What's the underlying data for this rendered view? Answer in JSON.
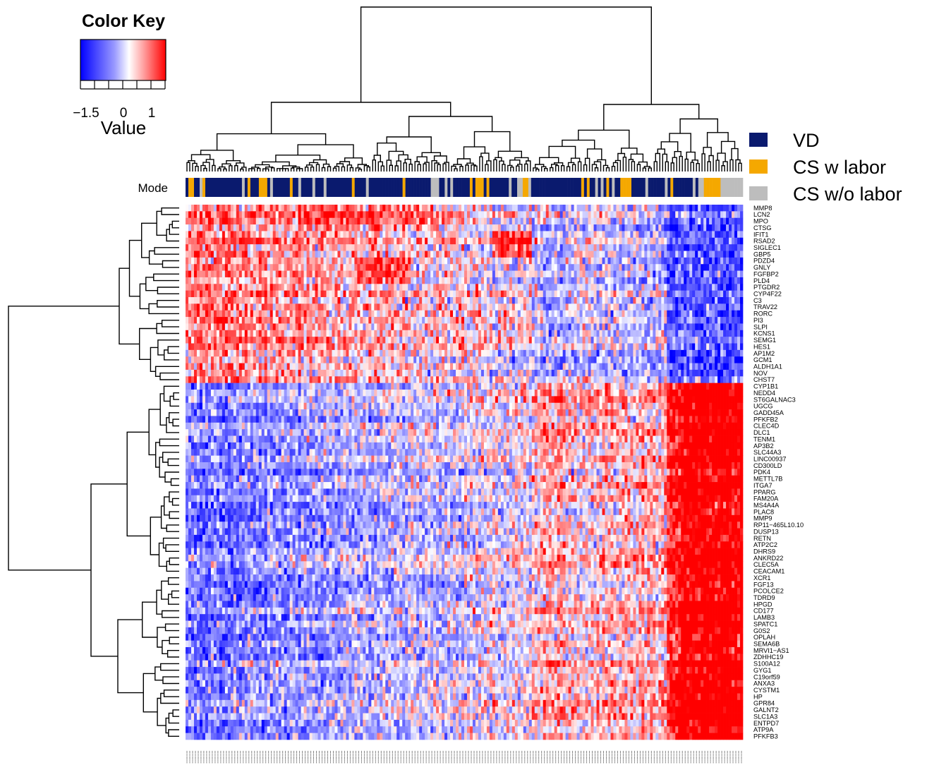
{
  "chart_data": {
    "type": "heatmap",
    "color_key": {
      "title": "Color Key",
      "label": "Value",
      "ticks": [
        -1.5,
        0,
        1
      ],
      "tick_labels": [
        "−1.5",
        "0",
        "1"
      ],
      "range": [
        -2,
        1.5
      ],
      "colors": {
        "low": "#0000ff",
        "mid": "#ffffff",
        "high": "#ff0000"
      }
    },
    "annotation_row": {
      "label": "Mode",
      "legend": [
        {
          "name": "VD",
          "color": "#0a1a6e"
        },
        {
          "name": "CS w labor",
          "color": "#f5a800"
        },
        {
          "name": "CS w/o labor",
          "color": "#bdbdbd"
        }
      ]
    },
    "genes": [
      "MMP8",
      "LCN2",
      "MPO",
      "CTSG",
      "IFIT1",
      "RSAD2",
      "SIGLEC1",
      "GBP5",
      "PDZD4",
      "GNLY",
      "FGFBP2",
      "PLD4",
      "PTGDR2",
      "CYP4F22",
      "C3",
      "TRAV22",
      "RORC",
      "PI3",
      "SLPI",
      "KCNS1",
      "SEMG1",
      "HES1",
      "AP1M2",
      "GCM1",
      "ALDH1A1",
      "NOV",
      "CHST7",
      "CYP1B1",
      "NEDD4",
      "ST6GALNAC3",
      "UGCG",
      "GADD45A",
      "PFKFB2",
      "CLEC4D",
      "DLC1",
      "TENM1",
      "AP3B2",
      "SLC44A3",
      "LINC00937",
      "CD300LD",
      "PDK4",
      "METTL7B",
      "ITGA7",
      "PPARG",
      "FAM20A",
      "MS4A4A",
      "PLAC8",
      "MMP9",
      "RP11−465L10.10",
      "DUSP13",
      "RETN",
      "ATP2C2",
      "DHRS9",
      "ANKRD22",
      "CLEC5A",
      "CEACAM1",
      "XCR1",
      "FGF13",
      "PCOLCE2",
      "TDRD9",
      "HPGD",
      "CD177",
      "LAMB3",
      "SPATC1",
      "G0S2",
      "OPLAH",
      "SEMA6B",
      "MRVI1−AS1",
      "ZDHHC19",
      "S100A12",
      "GYG1",
      "C19orf59",
      "ANXA3",
      "CYSTM1",
      "HP",
      "GPR84",
      "GALNT2",
      "SLC1A3",
      "ENTPD7",
      "ATP9A",
      "PFKFB3"
    ],
    "gene_clusters": [
      {
        "name": "",
        "rows": [
          0,
          26
        ],
        "column_trend": "high-left-low-right"
      },
      {
        "name": "",
        "rows": [
          27,
          80
        ],
        "column_trend": "low-left-high-right"
      }
    ],
    "mode_segments": [
      {
        "mode": "VD",
        "fraction": 0.44
      },
      {
        "mode": "CS w/o labor",
        "fraction": 0.04
      },
      {
        "mode": "VD",
        "fraction": 0.12
      },
      {
        "mode": "CS w labor",
        "fraction": 0.02
      },
      {
        "mode": "VD",
        "fraction": 0.16
      },
      {
        "mode": "CS w labor",
        "fraction": 0.02
      },
      {
        "mode": "VD",
        "fraction": 0.12
      },
      {
        "mode": "CS w labor",
        "fraction": 0.04
      },
      {
        "mode": "CS w/o labor",
        "fraction": 0.04
      }
    ]
  }
}
